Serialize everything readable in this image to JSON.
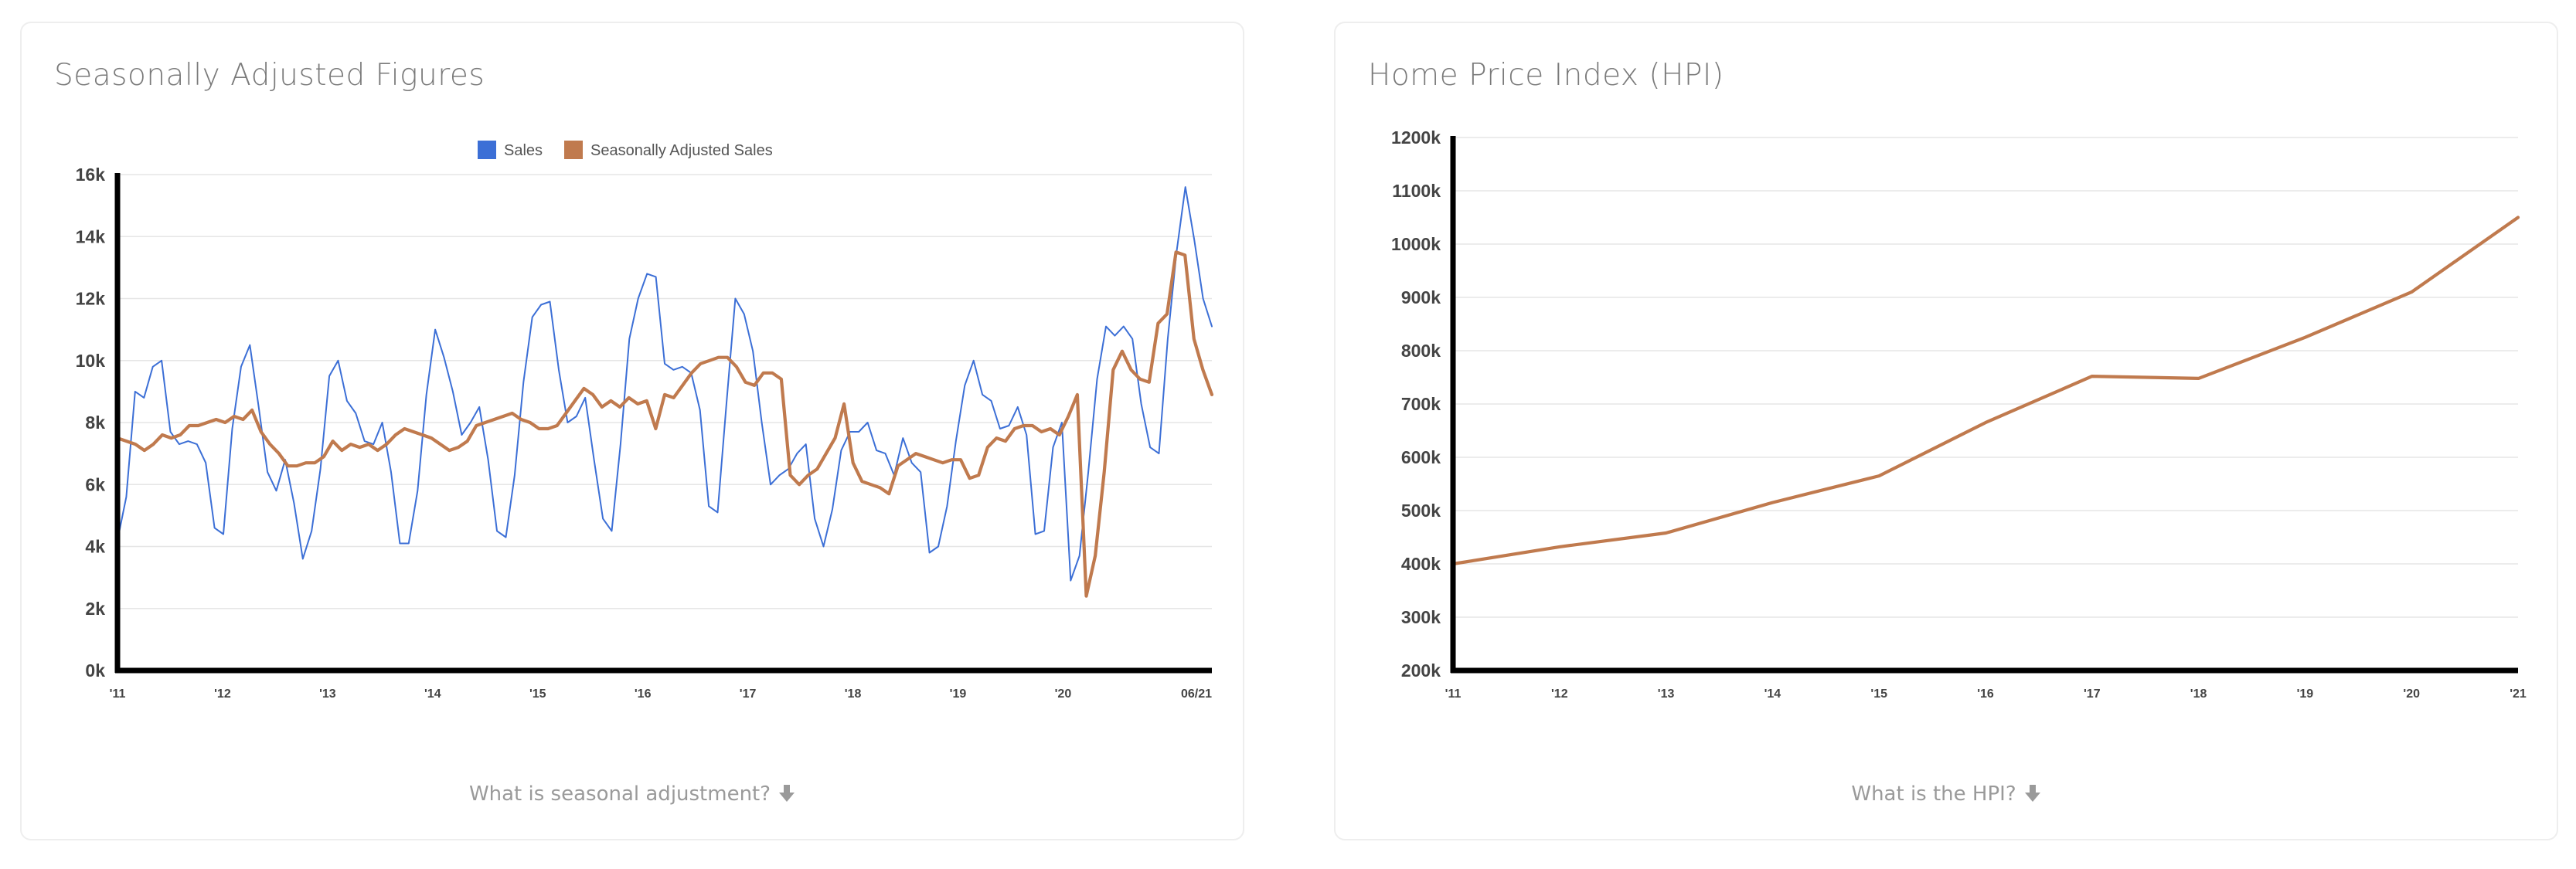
{
  "cards": [
    {
      "title": "Seasonally Adjusted Figures",
      "footer_link": "What is seasonal adjustment?",
      "footer_icon": "arrow-down-icon"
    },
    {
      "title": "Home Price Index (HPI)",
      "footer_link": "What is the HPI?",
      "footer_icon": "arrow-down-icon"
    }
  ],
  "colors": {
    "sales": "#3c6fd6",
    "adjusted": "#c07a4e",
    "axis": "#000000",
    "grid": "#e6e6e6"
  },
  "chart_data": [
    {
      "type": "line",
      "title": "Seasonally Adjusted Figures",
      "legend_position": "top-center",
      "grid": true,
      "y_unit": "k",
      "ylim": [
        0,
        16
      ],
      "yticks": [
        0,
        2,
        4,
        6,
        8,
        10,
        12,
        14,
        16
      ],
      "ytick_labels": [
        "0k",
        "2k",
        "4k",
        "6k",
        "8k",
        "10k",
        "12k",
        "14k",
        "16k"
      ],
      "xlim": [
        2011.0,
        2021.4167
      ],
      "xticks": [
        2011,
        2012,
        2013,
        2014,
        2015,
        2016,
        2017,
        2018,
        2019,
        2020,
        2021.4167
      ],
      "xtick_labels": [
        "'11",
        "'12",
        "'13",
        "'14",
        "'15",
        "'16",
        "'17",
        "'18",
        "'19",
        "'20",
        "06/21"
      ],
      "series": [
        {
          "name": "Sales",
          "color": "#3c6fd6",
          "values": [
            4.2,
            5.6,
            9.0,
            8.8,
            9.8,
            10.0,
            7.7,
            7.3,
            7.4,
            7.3,
            6.7,
            4.6,
            4.4,
            7.8,
            9.8,
            10.5,
            8.5,
            6.4,
            5.8,
            6.8,
            5.4,
            3.6,
            4.5,
            6.5,
            9.5,
            10.0,
            8.7,
            8.3,
            7.4,
            7.3,
            8.0,
            6.4,
            4.1,
            4.1,
            5.8,
            8.9,
            11.0,
            10.1,
            9.0,
            7.6,
            8.0,
            8.5,
            6.8,
            4.5,
            4.3,
            6.3,
            9.3,
            11.4,
            11.8,
            11.9,
            9.7,
            8.0,
            8.2,
            8.8,
            6.8,
            4.9,
            4.5,
            7.3,
            10.7,
            12.0,
            12.8,
            12.7,
            9.9,
            9.7,
            9.8,
            9.6,
            8.4,
            5.3,
            5.1,
            8.6,
            12.0,
            11.5,
            10.3,
            8.0,
            6.0,
            6.3,
            6.5,
            7.0,
            7.3,
            4.9,
            4.0,
            5.2,
            7.1,
            7.7,
            7.7,
            8.0,
            7.1,
            7.0,
            6.3,
            7.5,
            6.7,
            6.4,
            3.8,
            4.0,
            5.3,
            7.4,
            9.2,
            10.0,
            8.9,
            8.7,
            7.8,
            7.9,
            8.5,
            7.6,
            4.4,
            4.5,
            7.2,
            8.0,
            2.9,
            3.7,
            6.4,
            9.4,
            11.1,
            10.8,
            11.1,
            10.7,
            8.6,
            7.2,
            7.0,
            10.7,
            13.5,
            15.6,
            13.9,
            12.0,
            11.1
          ]
        },
        {
          "name": "Seasonally Adjusted Sales",
          "color": "#c07a4e",
          "values": [
            7.5,
            7.4,
            7.3,
            7.1,
            7.3,
            7.6,
            7.5,
            7.6,
            7.9,
            7.9,
            8.0,
            8.1,
            8.0,
            8.2,
            8.1,
            8.4,
            7.7,
            7.3,
            7.0,
            6.6,
            6.6,
            6.7,
            6.7,
            6.9,
            7.4,
            7.1,
            7.3,
            7.2,
            7.3,
            7.1,
            7.3,
            7.6,
            7.8,
            7.7,
            7.6,
            7.5,
            7.3,
            7.1,
            7.2,
            7.4,
            7.9,
            8.0,
            8.1,
            8.2,
            8.3,
            8.1,
            8.0,
            7.8,
            7.8,
            7.9,
            8.3,
            8.7,
            9.1,
            8.9,
            8.5,
            8.7,
            8.5,
            8.8,
            8.6,
            8.7,
            7.8,
            8.9,
            8.8,
            9.2,
            9.6,
            9.9,
            10.0,
            10.1,
            10.1,
            9.8,
            9.3,
            9.2,
            9.6,
            9.6,
            9.4,
            6.3,
            6.0,
            6.3,
            6.5,
            7.0,
            7.5,
            8.6,
            6.7,
            6.1,
            6.0,
            5.9,
            5.7,
            6.6,
            6.8,
            7.0,
            6.9,
            6.8,
            6.7,
            6.8,
            6.8,
            6.2,
            6.3,
            7.2,
            7.5,
            7.4,
            7.8,
            7.9,
            7.9,
            7.7,
            7.8,
            7.6,
            8.2,
            8.9,
            2.4,
            3.7,
            6.4,
            9.7,
            10.3,
            9.7,
            9.4,
            9.3,
            11.2,
            11.5,
            13.5,
            13.4,
            10.7,
            9.7,
            8.9
          ]
        }
      ]
    },
    {
      "type": "line",
      "title": "Home Price Index (HPI)",
      "grid": true,
      "y_unit": "k",
      "ylim": [
        200,
        1200
      ],
      "yticks": [
        200,
        300,
        400,
        500,
        600,
        700,
        800,
        900,
        1000,
        1100,
        1200
      ],
      "ytick_labels": [
        "200k",
        "300k",
        "400k",
        "500k",
        "600k",
        "700k",
        "800k",
        "900k",
        "1000k",
        "1100k",
        "1200k"
      ],
      "xlim": [
        2011,
        2021
      ],
      "xticks": [
        2011,
        2012,
        2013,
        2014,
        2015,
        2016,
        2017,
        2018,
        2019,
        2020,
        2021
      ],
      "xtick_labels": [
        "'11",
        "'12",
        "'13",
        "'14",
        "'15",
        "'16",
        "'17",
        "'18",
        "'19",
        "'20",
        "'21"
      ],
      "series": [
        {
          "color": "#c07a4e",
          "x": [
            2011,
            2012,
            2013,
            2014,
            2015,
            2016,
            2017,
            2018,
            2019,
            2020,
            2021
          ],
          "values": [
            400,
            432,
            458,
            515,
            565,
            665,
            752,
            748,
            825,
            910,
            1050
          ]
        }
      ]
    }
  ]
}
